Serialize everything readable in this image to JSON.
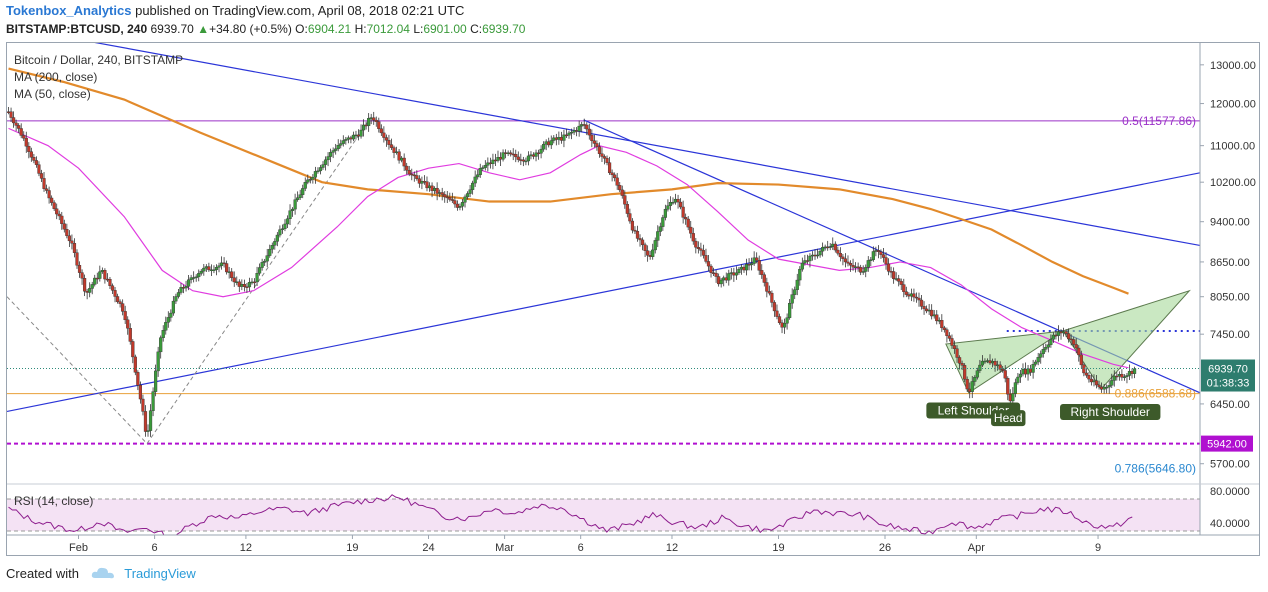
{
  "header": {
    "user": "Tokenbox_Analytics",
    "published": "published on TradingView.com, April 08, 2018 02:21 UTC",
    "symbol": "BITSTAMP:BTCUSD, 240",
    "last": "6939.70",
    "change_arrow": "▲",
    "change": "+34.80 (+0.5%)",
    "o_label": "O:",
    "o_value": "6904.21",
    "h_label": "H:",
    "h_value": "7012.04",
    "l_label": "L:",
    "l_value": "6901.00",
    "c_label": "C:",
    "c_value": "6939.70"
  },
  "legend": {
    "title": "Bitcoin / Dollar, 240, BITSTAMP",
    "ma200": "MA (200, close)",
    "ma50": "MA (50, close)",
    "rsi": "RSI (14, close)"
  },
  "footer": {
    "created": "Created with",
    "brand": "TradingView"
  },
  "colors": {
    "up": "#3a9a3a",
    "down": "#c0392b",
    "ma200": "#e28a2b",
    "ma50": "#e03ce0",
    "trend": "#2b35d8",
    "fib05": "#9b30c8",
    "fib886": "#e8a13a",
    "support": "#b010d0",
    "pattern": "#a6d89a",
    "rsi": "#8e1e8e"
  },
  "chart_data": [
    {
      "type": "candlestick",
      "title": "Bitcoin / Dollar, 240, BITSTAMP",
      "y_ticks": [
        13000,
        12000,
        11000,
        10200,
        9400,
        8650,
        8050,
        7450,
        6450,
        5700
      ],
      "y_tick_labels": [
        "13000.00",
        "12000.00",
        "11000.00",
        "10200.00",
        "9400.00",
        "8650.00",
        "8050.00",
        "7450.00",
        "6450.00",
        "5700.00"
      ],
      "ylim": [
        5500,
        13600
      ],
      "x_ticks": [
        "Feb",
        "6",
        "12",
        "19",
        "24",
        "Mar",
        "6",
        "12",
        "19",
        "26",
        "Apr",
        "9"
      ],
      "x_tick_days": [
        32,
        37,
        43,
        50,
        55,
        60,
        65,
        71,
        78,
        85,
        91,
        99
      ],
      "xlim": [
        27.3,
        105.7
      ],
      "price_path": [
        [
          27.4,
          11800
        ],
        [
          28.5,
          11100
        ],
        [
          30,
          9900
        ],
        [
          31.5,
          9000
        ],
        [
          32.5,
          8100
        ],
        [
          33.5,
          8500
        ],
        [
          35,
          7800
        ],
        [
          36.5,
          6000
        ],
        [
          37.4,
          7400
        ],
        [
          38.5,
          8100
        ],
        [
          40,
          8500
        ],
        [
          41.5,
          8600
        ],
        [
          42.6,
          8200
        ],
        [
          43.5,
          8300
        ],
        [
          45,
          9100
        ],
        [
          47,
          10200
        ],
        [
          49,
          11000
        ],
        [
          50.5,
          11300
        ],
        [
          51.3,
          11700
        ],
        [
          52.5,
          11000
        ],
        [
          54,
          10300
        ],
        [
          55.5,
          10000
        ],
        [
          57,
          9700
        ],
        [
          58.5,
          10500
        ],
        [
          60,
          10800
        ],
        [
          61.5,
          10700
        ],
        [
          63,
          11100
        ],
        [
          64,
          11200
        ],
        [
          65.2,
          11500
        ],
        [
          66,
          11000
        ],
        [
          67.5,
          10100
        ],
        [
          68.5,
          9200
        ],
        [
          69.5,
          8700
        ],
        [
          70.5,
          9600
        ],
        [
          71.2,
          9900
        ],
        [
          72.5,
          9000
        ],
        [
          74,
          8300
        ],
        [
          75.5,
          8500
        ],
        [
          76.5,
          8700
        ],
        [
          77.5,
          8000
        ],
        [
          78.3,
          7500
        ],
        [
          79.5,
          8600
        ],
        [
          80.5,
          8800
        ],
        [
          81.5,
          9000
        ],
        [
          82.5,
          8600
        ],
        [
          83.5,
          8500
        ],
        [
          84.5,
          8900
        ],
        [
          85.5,
          8400
        ],
        [
          86.5,
          8100
        ],
        [
          88,
          7800
        ],
        [
          89,
          7500
        ],
        [
          90,
          7000
        ],
        [
          90.5,
          6600
        ],
        [
          91.3,
          7000
        ],
        [
          92,
          7050
        ],
        [
          92.8,
          6900
        ],
        [
          93.2,
          6450
        ],
        [
          93.8,
          6900
        ],
        [
          94.5,
          6900
        ],
        [
          95.3,
          7200
        ],
        [
          96,
          7400
        ],
        [
          96.7,
          7500
        ],
        [
          97.5,
          7300
        ],
        [
          98,
          6900
        ],
        [
          98.6,
          6750
        ],
        [
          99.2,
          6650
        ],
        [
          99.6,
          6700
        ],
        [
          100.2,
          6850
        ],
        [
          100.8,
          6850
        ],
        [
          101.5,
          6940
        ]
      ],
      "series": [
        {
          "name": "MA (200, close)",
          "points": [
            [
              27.4,
              12900
            ],
            [
              31,
              12550
            ],
            [
              35,
              12100
            ],
            [
              40,
              11300
            ],
            [
              45,
              10600
            ],
            [
              48,
              10200
            ],
            [
              51,
              10050
            ],
            [
              55,
              9950
            ],
            [
              59,
              9800
            ],
            [
              63,
              9800
            ],
            [
              67,
              9950
            ],
            [
              71,
              10050
            ],
            [
              74,
              10180
            ],
            [
              78,
              10150
            ],
            [
              82,
              10050
            ],
            [
              85.5,
              9850
            ],
            [
              88,
              9650
            ],
            [
              90,
              9450
            ],
            [
              92,
              9250
            ],
            [
              94,
              8950
            ],
            [
              96,
              8650
            ],
            [
              98,
              8400
            ],
            [
              100,
              8200
            ],
            [
              101,
              8100
            ]
          ]
        },
        {
          "name": "MA (50, close)",
          "points": [
            [
              27.4,
              11400
            ],
            [
              30,
              11000
            ],
            [
              32,
              10500
            ],
            [
              35,
              9500
            ],
            [
              37.5,
              8500
            ],
            [
              39.5,
              8150
            ],
            [
              41.5,
              8050
            ],
            [
              43.5,
              8150
            ],
            [
              46,
              8550
            ],
            [
              49,
              9300
            ],
            [
              51,
              9900
            ],
            [
              53,
              10300
            ],
            [
              55,
              10500
            ],
            [
              57,
              10600
            ],
            [
              59,
              10400
            ],
            [
              61,
              10250
            ],
            [
              63,
              10400
            ],
            [
              65,
              10800
            ],
            [
              66.2,
              11000
            ],
            [
              68,
              10850
            ],
            [
              70,
              10550
            ],
            [
              72,
              10150
            ],
            [
              74,
              9600
            ],
            [
              76,
              9050
            ],
            [
              78,
              8700
            ],
            [
              80,
              8600
            ],
            [
              82,
              8500
            ],
            [
              84,
              8550
            ],
            [
              86,
              8650
            ],
            [
              88,
              8550
            ],
            [
              90,
              8250
            ],
            [
              92,
              7850
            ],
            [
              94,
              7550
            ],
            [
              96,
              7350
            ],
            [
              98,
              7150
            ],
            [
              100,
              7000
            ],
            [
              101,
              6950
            ]
          ]
        }
      ],
      "trendlines": [
        {
          "name": "descending-long",
          "from": [
            32,
            13700
          ],
          "to": [
            105.7,
            8950
          ]
        },
        {
          "name": "descending-short",
          "from": [
            65.2,
            11600
          ],
          "to": [
            105.7,
            6600
          ]
        },
        {
          "name": "ascending-support",
          "from": [
            27.3,
            6350
          ],
          "to": [
            105.7,
            10400
          ]
        }
      ],
      "horizontal_levels": [
        {
          "label": "0.5(11577.86)",
          "value": 11577.86
        },
        {
          "label": "0.886(6588.68)",
          "value": 6588.68
        },
        {
          "label": "5942.00",
          "value": 5942
        },
        {
          "label": "",
          "value": 7500
        },
        {
          "label": "0.786(5646.80)",
          "value": 5646.8
        }
      ],
      "annotations": [
        "Left Shoulder",
        "Head",
        "Right Shoulder"
      ],
      "last_price_label": "6939.70",
      "countdown_label": "01:38:33"
    },
    {
      "type": "line",
      "title": "RSI (14, close)",
      "y_ticks": [
        80,
        40
      ],
      "y_tick_labels": [
        "80.0000",
        "40.0000"
      ],
      "ylim": [
        25,
        85
      ],
      "band": [
        70,
        30
      ],
      "values": [
        58,
        44,
        36,
        30,
        42,
        28,
        34,
        22,
        38,
        50,
        46,
        55,
        58,
        52,
        60,
        66,
        70,
        72,
        60,
        48,
        46,
        58,
        52,
        62,
        60,
        44,
        30,
        38,
        50,
        40,
        34,
        46,
        36,
        30,
        42,
        56,
        52,
        50,
        38,
        32,
        28,
        42,
        34,
        44,
        50,
        58,
        54,
        38,
        34,
        50
      ]
    }
  ]
}
